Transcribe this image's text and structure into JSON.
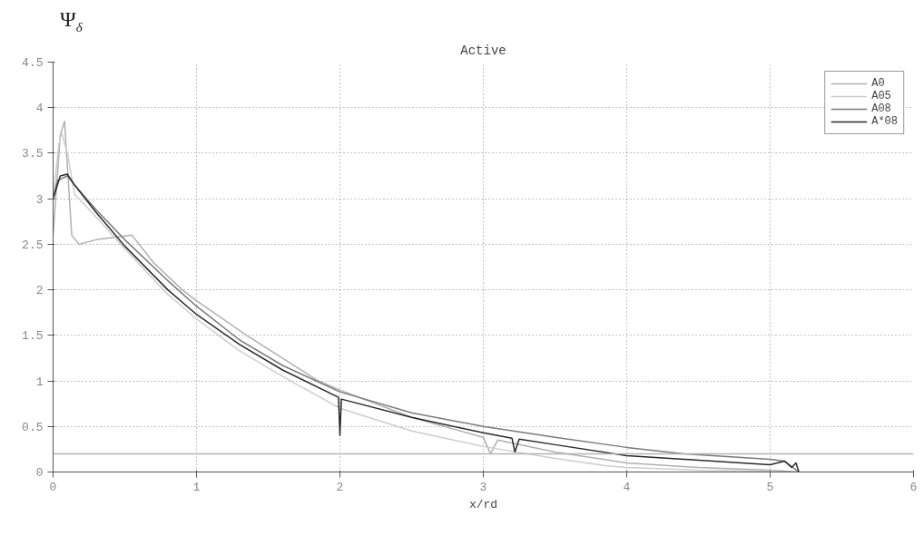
{
  "chart_data": {
    "type": "line",
    "title": "Active",
    "xlabel": "x/rd",
    "ylabel": "Ψ$_{δ}$",
    "xlim": [
      0,
      6
    ],
    "xticks": [
      0,
      1,
      2,
      3,
      4,
      5,
      6
    ],
    "ylim": [
      0,
      4.5
    ],
    "yticks": [
      0,
      0.5,
      1,
      1.5,
      2,
      2.5,
      3,
      3.5,
      4,
      4.5
    ],
    "grid": true,
    "legend": "top right",
    "line_style": "solid",
    "ref_lines": [
      {
        "axis": "y",
        "value": 0.2,
        "color": "#b4b4b4"
      }
    ],
    "series": [
      {
        "name": "A0",
        "color": "#b0b0b0",
        "x": [
          0,
          0.05,
          0.08,
          0.13,
          0.18,
          0.3,
          0.55,
          0.7,
          0.9,
          1.0,
          1.35,
          1.85,
          2.0,
          2.5,
          3.0,
          3.05,
          3.1,
          3.5,
          4.0,
          4.5,
          5.0,
          5.2
        ],
        "values": [
          2.6,
          3.7,
          3.85,
          2.6,
          2.5,
          2.55,
          2.6,
          2.3,
          2.0,
          1.88,
          1.5,
          1.0,
          0.9,
          0.6,
          0.38,
          0.2,
          0.35,
          0.22,
          0.1,
          0.05,
          0.02,
          0.0
        ]
      },
      {
        "name": "A05",
        "color": "#cdcdcd",
        "x": [
          0,
          0.04,
          0.06,
          0.1,
          0.15,
          0.3,
          0.5,
          0.8,
          1.0,
          1.3,
          1.6,
          2.0,
          2.5,
          3.0,
          3.5,
          3.85,
          4.0,
          4.5,
          5.0
        ],
        "values": [
          3.0,
          3.6,
          3.72,
          3.5,
          3.05,
          2.8,
          2.45,
          1.95,
          1.68,
          1.33,
          1.05,
          0.7,
          0.45,
          0.28,
          0.15,
          0.07,
          0.05,
          0.02,
          0.01
        ]
      },
      {
        "name": "A08",
        "color": "#7a7a7a",
        "x": [
          0,
          0.03,
          0.1,
          0.15,
          0.3,
          0.5,
          0.8,
          1.0,
          1.3,
          1.6,
          2.0,
          2.5,
          3.0,
          3.5,
          4.0,
          4.4,
          4.8,
          5.0,
          5.1,
          5.2
        ],
        "values": [
          3.0,
          3.2,
          3.25,
          3.15,
          2.88,
          2.55,
          2.1,
          1.82,
          1.45,
          1.17,
          0.88,
          0.65,
          0.5,
          0.38,
          0.27,
          0.2,
          0.16,
          0.14,
          0.12,
          0.0
        ]
      },
      {
        "name": "A*08",
        "color": "#2a2a2a",
        "x": [
          0,
          0.05,
          0.1,
          0.15,
          0.3,
          0.5,
          0.8,
          1.0,
          1.3,
          1.6,
          1.99,
          2.0,
          2.01,
          2.5,
          3.0,
          3.2,
          3.22,
          3.25,
          3.5,
          4.0,
          4.4,
          4.8,
          5.0,
          5.1,
          5.15,
          5.18,
          5.2
        ],
        "values": [
          3.0,
          3.25,
          3.27,
          3.15,
          2.85,
          2.48,
          2.0,
          1.73,
          1.4,
          1.12,
          0.82,
          0.4,
          0.8,
          0.6,
          0.43,
          0.37,
          0.22,
          0.36,
          0.3,
          0.18,
          0.14,
          0.1,
          0.08,
          0.12,
          0.05,
          0.1,
          0.0
        ]
      }
    ]
  }
}
